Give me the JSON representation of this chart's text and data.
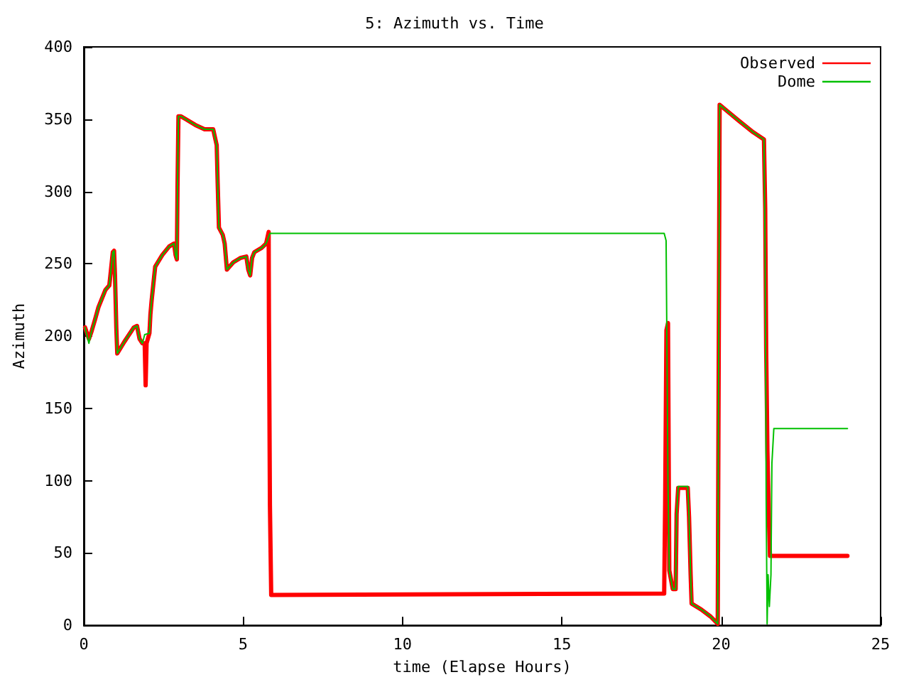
{
  "chart_data": {
    "type": "line",
    "title": "5: Azimuth vs. Time",
    "xlabel": "time (Elapse Hours)",
    "ylabel": "Azimuth",
    "xlim": [
      0,
      25
    ],
    "xticks": [
      0,
      5,
      10,
      15,
      20,
      25
    ],
    "ylim": [
      0,
      400
    ],
    "yticks": [
      0,
      50,
      100,
      150,
      200,
      250,
      300,
      350,
      400
    ],
    "grid": false,
    "legend": "top right",
    "marker": "none",
    "line_style": "solid",
    "series": [
      {
        "name": "Observed",
        "color": "#ff0000",
        "x": [
          0.04,
          0.16,
          0.24,
          0.36,
          0.46,
          0.68,
          0.8,
          0.83,
          0.91,
          0.95,
          0.98,
          1.02,
          1.05,
          1.27,
          1.57,
          1.67,
          1.75,
          1.84,
          1.91,
          1.94,
          1.97,
          2.06,
          2.09,
          2.13,
          2.24,
          2.46,
          2.68,
          2.83,
          2.88,
          2.92,
          2.94,
          2.97,
          3.05,
          3.2,
          3.5,
          3.79,
          4.06,
          4.17,
          4.2,
          4.24,
          4.36,
          4.42,
          4.49,
          4.69,
          4.91,
          5.1,
          5.16,
          5.22,
          5.28,
          5.35,
          5.58,
          5.72,
          5.8,
          5.81,
          5.84,
          5.88,
          18.21,
          18.24,
          18.28,
          18.33,
          18.37,
          18.48,
          18.57,
          18.6,
          18.65,
          18.95,
          18.99,
          19.04,
          19.07,
          19.37,
          19.67,
          19.89,
          19.92,
          19.95,
          20.11,
          20.55,
          21.0,
          21.34,
          21.38,
          21.41,
          21.45,
          21.5,
          21.53,
          23.96
        ],
        "values": [
          206,
          198,
          203,
          212,
          220,
          232,
          235,
          241,
          258,
          259,
          241,
          206,
          188,
          196,
          206,
          207,
          198,
          195,
          195,
          166,
          195,
          202,
          215,
          225,
          248,
          256,
          262,
          264,
          256,
          253,
          303,
          352,
          352,
          350,
          346,
          343,
          343,
          332,
          306,
          275,
          270,
          264,
          246,
          251,
          254,
          255,
          246,
          242,
          254,
          258,
          261,
          264,
          272,
          209,
          83,
          21,
          22,
          84,
          204,
          209,
          38,
          25,
          25,
          77,
          95,
          95,
          75,
          35,
          15,
          11,
          6,
          1,
          180,
          360,
          357,
          349,
          341,
          336,
          288,
          191,
          120,
          70,
          48,
          48
        ]
      },
      {
        "name": "Dome",
        "color": "#00c000",
        "x": [
          0.04,
          0.16,
          0.24,
          0.36,
          0.46,
          0.68,
          0.8,
          0.83,
          0.91,
          0.95,
          0.98,
          1.02,
          1.05,
          1.27,
          1.57,
          1.67,
          1.75,
          1.84,
          1.91,
          2.06,
          2.09,
          2.13,
          2.24,
          2.46,
          2.68,
          2.83,
          2.88,
          2.92,
          2.94,
          2.97,
          3.05,
          3.2,
          3.5,
          3.79,
          4.06,
          4.17,
          4.2,
          4.24,
          4.36,
          4.42,
          4.49,
          4.69,
          4.91,
          5.1,
          5.16,
          5.22,
          5.28,
          5.35,
          5.58,
          5.72,
          5.84,
          18.21,
          18.27,
          18.33,
          18.37,
          18.48,
          18.57,
          18.6,
          18.65,
          18.95,
          18.99,
          19.04,
          19.07,
          19.37,
          19.67,
          19.89,
          19.92,
          19.95,
          20.11,
          20.55,
          21.0,
          21.34,
          21.38,
          21.41,
          21.44,
          21.47,
          21.51,
          21.56,
          21.59,
          21.65,
          23.96
        ],
        "values": [
          206,
          195,
          203,
          212,
          220,
          232,
          235,
          241,
          258,
          259,
          241,
          206,
          188,
          196,
          206,
          207,
          198,
          195,
          201,
          202,
          215,
          225,
          248,
          256,
          262,
          264,
          256,
          253,
          303,
          352,
          352,
          350,
          346,
          343,
          343,
          332,
          306,
          275,
          270,
          264,
          246,
          251,
          254,
          255,
          246,
          242,
          254,
          258,
          261,
          264,
          271,
          271,
          266,
          98,
          38,
          25,
          25,
          77,
          96,
          96,
          75,
          35,
          15,
          11,
          6,
          1,
          180,
          360,
          357,
          349,
          341,
          336,
          253,
          87,
          1,
          35,
          13,
          35,
          112,
          136,
          136
        ]
      }
    ]
  }
}
